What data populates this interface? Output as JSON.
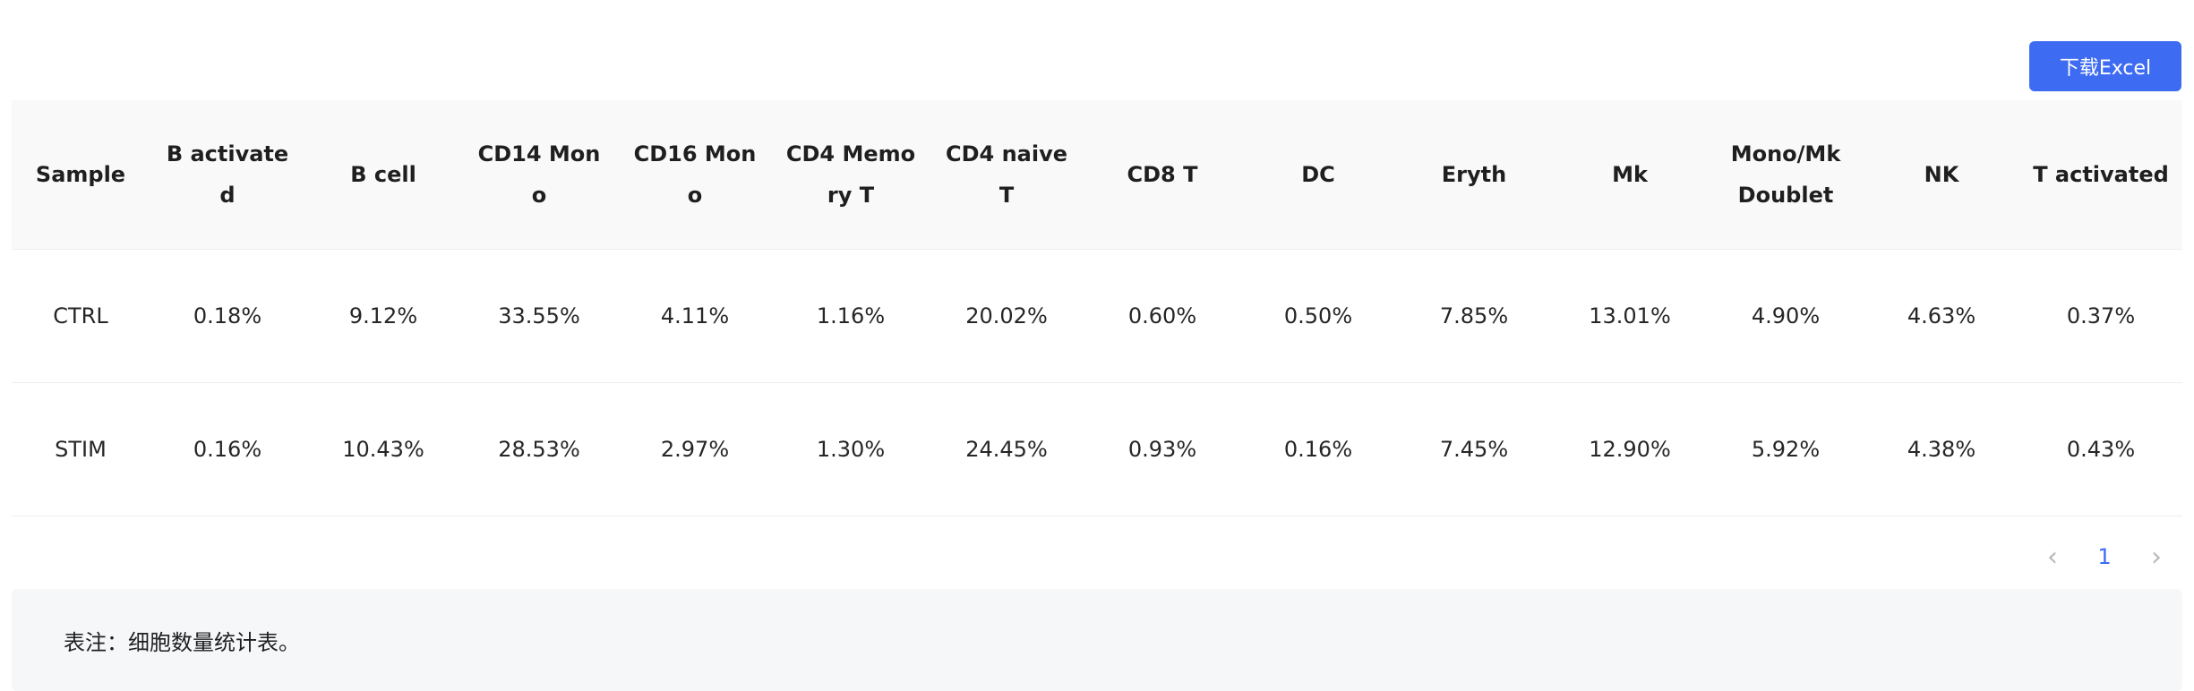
{
  "toolbar": {
    "download_label": "下载Excel"
  },
  "table": {
    "headers": [
      "Sample",
      "B activated",
      "B cell",
      "CD14 Mono",
      "CD16 Mono",
      "CD4 Memory T",
      "CD4 naive T",
      "CD8 T",
      "DC",
      "Eryth",
      "Mk",
      "Mono/Mk Doublet",
      "NK",
      "T activated"
    ],
    "rows": [
      [
        "CTRL",
        "0.18%",
        "9.12%",
        "33.55%",
        "4.11%",
        "1.16%",
        "20.02%",
        "0.60%",
        "0.50%",
        "7.85%",
        "13.01%",
        "4.90%",
        "4.63%",
        "0.37%"
      ],
      [
        "STIM",
        "0.16%",
        "10.43%",
        "28.53%",
        "2.97%",
        "1.30%",
        "24.45%",
        "0.93%",
        "0.16%",
        "7.45%",
        "12.90%",
        "5.92%",
        "4.38%",
        "0.43%"
      ]
    ]
  },
  "pagination": {
    "prev_icon": "chevron-left-icon",
    "current_page": "1",
    "next_icon": "chevron-right-icon"
  },
  "note": {
    "text": "表注：细胞数量统计表。"
  },
  "colors": {
    "accent": "#3d6cf2",
    "header_bg": "#f9f9f9",
    "note_bg": "#f6f7f9"
  }
}
